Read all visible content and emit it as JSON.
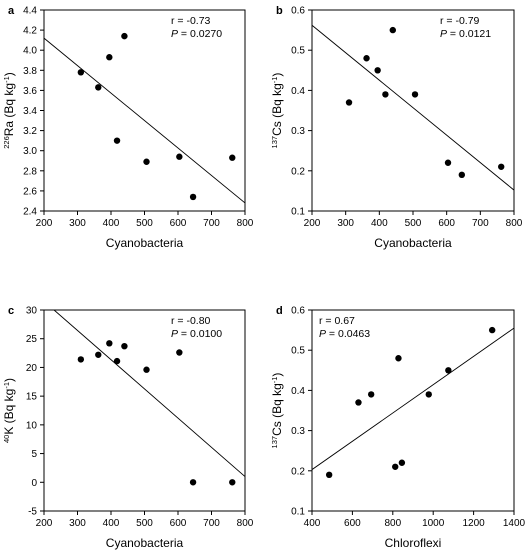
{
  "chart_data": [
    {
      "type": "scatter",
      "panel_letter": "a",
      "xlabel": "Cyanobacteria",
      "ylabel": {
        "iso": "226",
        "elem": "Ra (Bq kg",
        "exp": "-1",
        "close": ")"
      },
      "xlim": [
        200,
        800
      ],
      "ylim": [
        2.4,
        4.4
      ],
      "xticks": [
        "200",
        "300",
        "400",
        "500",
        "600",
        "700",
        "800"
      ],
      "yticks": [
        "2.4",
        "2.6",
        "2.8",
        "3.0",
        "3.2",
        "3.4",
        "3.6",
        "3.8",
        "4.0",
        "4.2",
        "4.4"
      ],
      "points": [
        {
          "x": 310,
          "y": 3.78
        },
        {
          "x": 362,
          "y": 3.63
        },
        {
          "x": 395,
          "y": 3.93
        },
        {
          "x": 418,
          "y": 3.1
        },
        {
          "x": 440,
          "y": 4.14
        },
        {
          "x": 506,
          "y": 2.89
        },
        {
          "x": 604,
          "y": 2.94
        },
        {
          "x": 645,
          "y": 2.54
        },
        {
          "x": 762,
          "y": 2.93
        }
      ],
      "regression": {
        "x": [
          200,
          800
        ],
        "y": [
          4.12,
          2.48
        ]
      },
      "stats": {
        "r": "r = -0.73",
        "p_label": "P",
        "p_value": " = 0.0270"
      },
      "stats_position": "top-right"
    },
    {
      "type": "scatter",
      "panel_letter": "b",
      "xlabel": "Cyanobacteria",
      "ylabel": {
        "iso": "137",
        "elem": "Cs (Bq kg",
        "exp": "-1",
        "close": ")"
      },
      "xlim": [
        200,
        800
      ],
      "ylim": [
        0.1,
        0.6
      ],
      "xticks": [
        "200",
        "300",
        "400",
        "500",
        "600",
        "700",
        "800"
      ],
      "yticks": [
        "0.1",
        "0.2",
        "0.3",
        "0.4",
        "0.5",
        "0.6"
      ],
      "points": [
        {
          "x": 310,
          "y": 0.37
        },
        {
          "x": 362,
          "y": 0.48
        },
        {
          "x": 395,
          "y": 0.45
        },
        {
          "x": 418,
          "y": 0.39
        },
        {
          "x": 440,
          "y": 0.55
        },
        {
          "x": 506,
          "y": 0.39
        },
        {
          "x": 604,
          "y": 0.22
        },
        {
          "x": 645,
          "y": 0.19
        },
        {
          "x": 762,
          "y": 0.21
        }
      ],
      "regression": {
        "x": [
          200,
          800
        ],
        "y": [
          0.562,
          0.152
        ]
      },
      "stats": {
        "r": "r = -0.79",
        "p_label": "P",
        "p_value": " = 0.0121"
      },
      "stats_position": "top-right"
    },
    {
      "type": "scatter",
      "panel_letter": "c",
      "xlabel": "Cyanobacteria",
      "ylabel": {
        "iso": "40",
        "elem": "K (Bq kg",
        "exp": "-1",
        "close": ")"
      },
      "xlim": [
        200,
        800
      ],
      "ylim": [
        -5,
        30
      ],
      "xticks": [
        "200",
        "300",
        "400",
        "500",
        "600",
        "700",
        "800"
      ],
      "yticks": [
        "-5",
        "0",
        "5",
        "10",
        "15",
        "20",
        "25",
        "30"
      ],
      "points": [
        {
          "x": 310,
          "y": 21.4
        },
        {
          "x": 362,
          "y": 22.2
        },
        {
          "x": 395,
          "y": 24.2
        },
        {
          "x": 418,
          "y": 21.1
        },
        {
          "x": 440,
          "y": 23.7
        },
        {
          "x": 506,
          "y": 19.6
        },
        {
          "x": 604,
          "y": 22.6
        },
        {
          "x": 645,
          "y": 0.0
        },
        {
          "x": 762,
          "y": 0.0
        }
      ],
      "regression": {
        "x": [
          230,
          800
        ],
        "y": [
          30.0,
          1.0
        ]
      },
      "stats": {
        "r": "r = -0.80",
        "p_label": "P",
        "p_value": " = 0.0100"
      },
      "stats_position": "top-right"
    },
    {
      "type": "scatter",
      "panel_letter": "d",
      "xlabel": "Chloroflexi",
      "ylabel": {
        "iso": "137",
        "elem": "Cs (Bq kg",
        "exp": "-1",
        "close": ")"
      },
      "xlim": [
        400,
        1400
      ],
      "ylim": [
        0.1,
        0.6
      ],
      "xticks": [
        "400",
        "600",
        "800",
        "1000",
        "1200",
        "1400"
      ],
      "yticks": [
        "0.1",
        "0.2",
        "0.3",
        "0.4",
        "0.5",
        "0.6"
      ],
      "points": [
        {
          "x": 485,
          "y": 0.19
        },
        {
          "x": 630,
          "y": 0.37
        },
        {
          "x": 693,
          "y": 0.39
        },
        {
          "x": 812,
          "y": 0.21
        },
        {
          "x": 828,
          "y": 0.48
        },
        {
          "x": 845,
          "y": 0.22
        },
        {
          "x": 978,
          "y": 0.39
        },
        {
          "x": 1075,
          "y": 0.45
        },
        {
          "x": 1292,
          "y": 0.55
        }
      ],
      "regression": {
        "x": [
          400,
          1400
        ],
        "y": [
          0.203,
          0.555
        ]
      },
      "stats": {
        "r": "r = 0.67",
        "p_label": "P",
        "p_value": " = 0.0463"
      },
      "stats_position": "top-left"
    }
  ]
}
